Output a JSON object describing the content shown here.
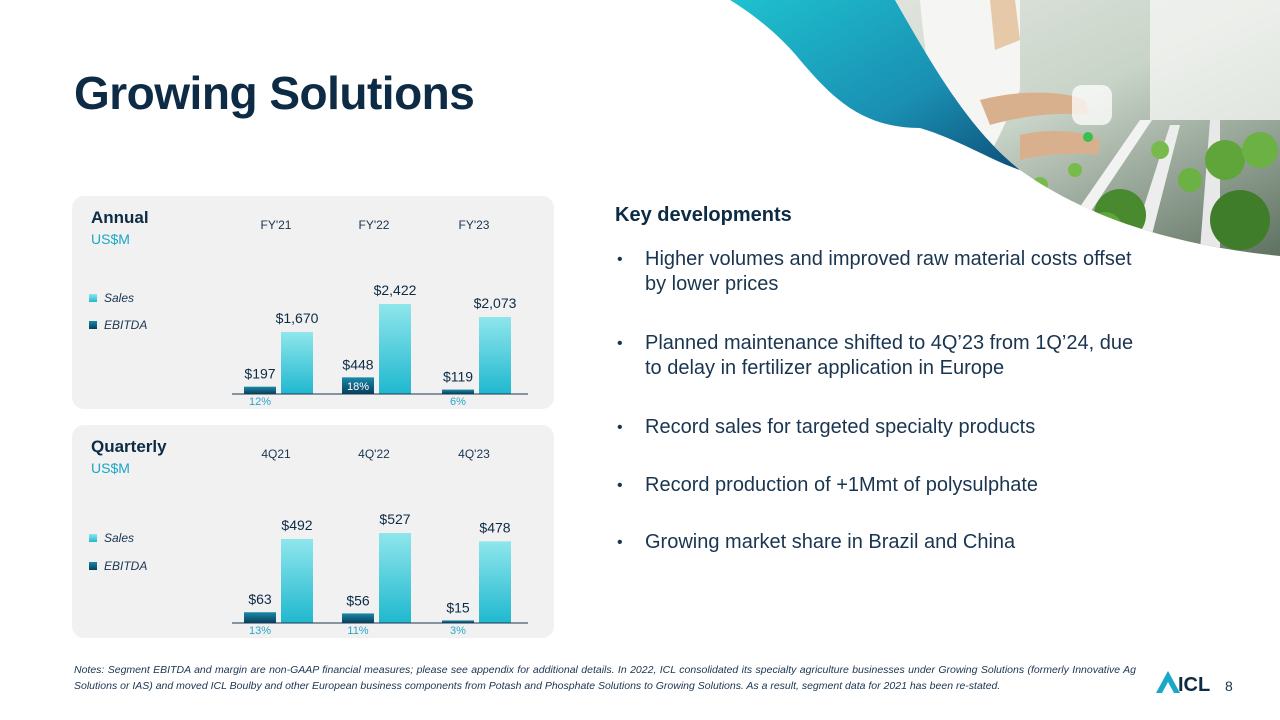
{
  "page": {
    "title": "Growing Solutions",
    "page_number": "8"
  },
  "key_developments": {
    "title": "Key developments",
    "items": [
      "Higher volumes and improved raw material costs offset by lower prices",
      "Planned maintenance shifted to 4Q’23 from 1Q’24, due to delay in fertilizer application in Europe",
      "Record sales for targeted specialty products",
      "Record production of +1Mmt of polysulphate",
      "Growing market share in Brazil and China"
    ]
  },
  "notes": "Notes: Segment EBITDA and margin are non-GAAP financial measures; please see appendix for additional details. In 2022, ICL consolidated its specialty agriculture businesses under Growing Solutions (formerly Innovative Ag Solutions or IAS) and moved ICL Boulby and other European business components from Potash and Phosphate Solutions to Growing Solutions. As a result, segment data for 2021 has been re-stated.",
  "logo": {
    "text": "ICL"
  },
  "colors": {
    "sales": "#4fd2de",
    "ebitda": "#0a5f7d",
    "title": "#0d2b45",
    "margin_text": "#2aa6c7",
    "panel_bg": "#f1f1f1"
  },
  "chart_data": [
    {
      "type": "bar",
      "title": "Annual",
      "unit": "US$M",
      "categories": [
        "FY'21",
        "FY'22",
        "FY'23"
      ],
      "series": [
        {
          "name": "Sales",
          "values": [
            1670,
            2422,
            2073
          ],
          "labels": [
            "$1,670",
            "$2,422",
            "$2,073"
          ]
        },
        {
          "name": "EBITDA",
          "values": [
            197,
            448,
            119
          ],
          "labels": [
            "$197",
            "$448",
            "$119"
          ]
        }
      ],
      "margins": [
        "12%",
        "18%",
        "6%"
      ],
      "ylim": [
        0,
        2422
      ]
    },
    {
      "type": "bar",
      "title": "Quarterly",
      "unit": "US$M",
      "categories": [
        "4Q21",
        "4Q'22",
        "4Q'23"
      ],
      "series": [
        {
          "name": "Sales",
          "values": [
            492,
            527,
            478
          ],
          "labels": [
            "$492",
            "$527",
            "$478"
          ]
        },
        {
          "name": "EBITDA",
          "values": [
            63,
            56,
            15
          ],
          "labels": [
            "$63",
            "$56",
            "$15"
          ]
        }
      ],
      "margins": [
        "13%",
        "11%",
        "3%"
      ],
      "ylim": [
        0,
        527
      ]
    }
  ]
}
